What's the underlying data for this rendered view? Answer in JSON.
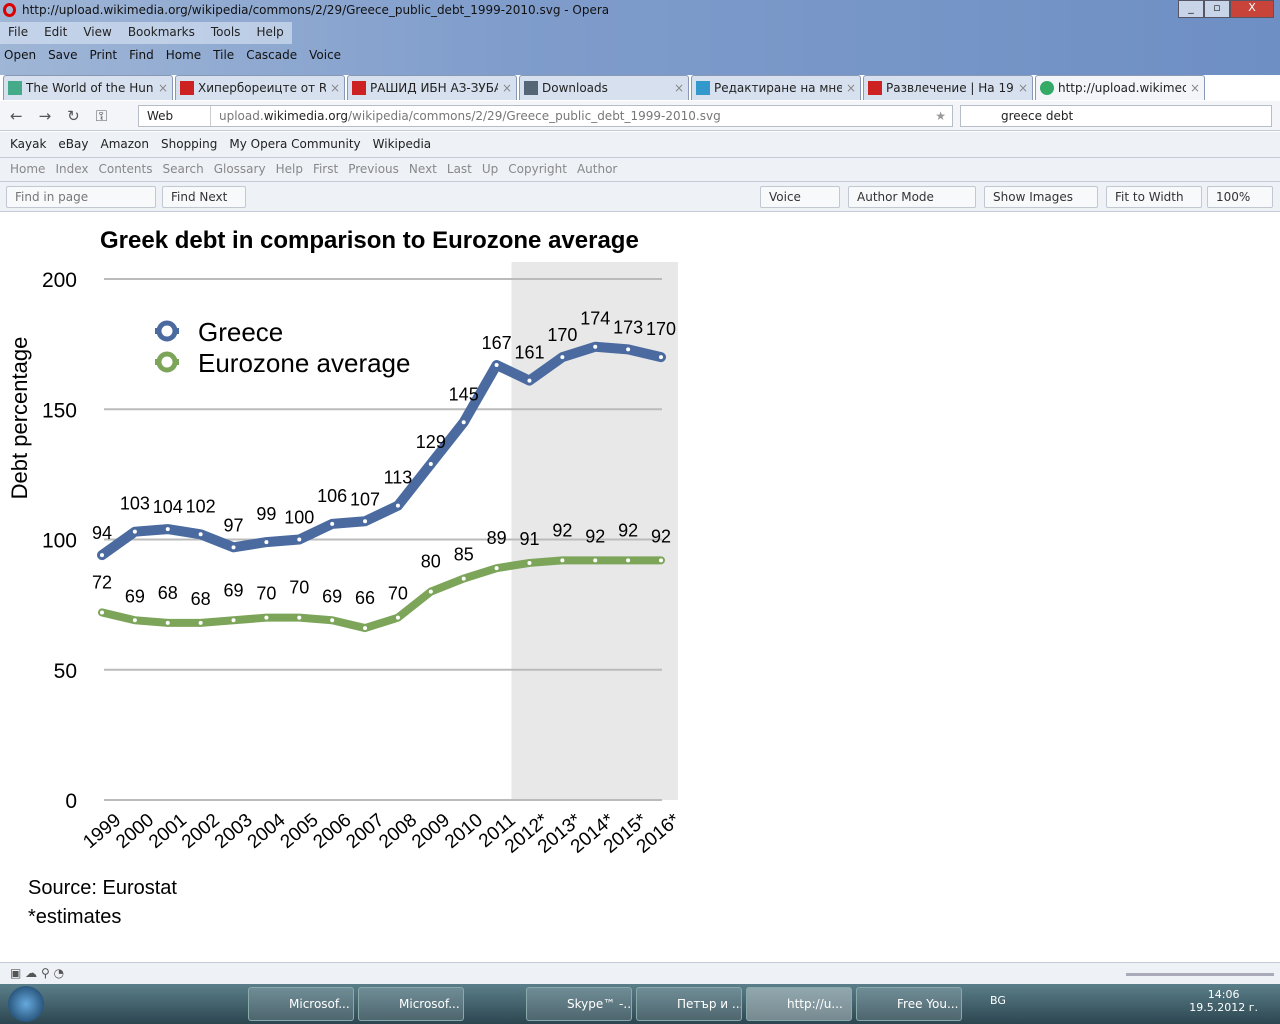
{
  "window": {
    "title": "http://upload.wikimedia.org/wikipedia/commons/2/29/Greece_public_debt_1999-2010.svg - Opera"
  },
  "menu": [
    "File",
    "Edit",
    "View",
    "Bookmarks",
    "Tools",
    "Help"
  ],
  "toolbar": [
    "Open",
    "Save",
    "Print",
    "Find",
    "Home",
    "Tile",
    "Cascade",
    "Voice"
  ],
  "tabs": [
    {
      "label": "The World of the Huns:...",
      "active": false
    },
    {
      "label": "Хипербореицте от R...",
      "active": false
    },
    {
      "label": "РАШИД ИБН АЗ-ЗУБА...",
      "active": false
    },
    {
      "label": "Downloads",
      "active": false
    },
    {
      "label": "Редактиране на мнен...",
      "active": false
    },
    {
      "label": "Развлечение | На 19 м...",
      "active": false
    },
    {
      "label": "http://upload.wikimed...",
      "active": true
    }
  ],
  "address": {
    "web_label": "Web",
    "url_pre": "upload.",
    "url_domain": "wikimedia.org",
    "url_post": "/wikipedia/commons/2/29/Greece_public_debt_1999-2010.svg",
    "search": "greece debt"
  },
  "bookmarks": [
    "Kayak",
    "eBay",
    "Amazon",
    "Shopping",
    "My Opera Community",
    "Wikipedia"
  ],
  "navlinks": [
    "Home",
    "Index",
    "Contents",
    "Search",
    "Glossary",
    "Help",
    "First",
    "Previous",
    "Next",
    "Last",
    "Up",
    "Copyright",
    "Author"
  ],
  "findbar": {
    "placeholder": "Find in page",
    "find_next": "Find Next",
    "voice": "Voice",
    "author_mode": "Author Mode",
    "show_images": "Show Images",
    "fit": "Fit to Width",
    "zoom": "100%"
  },
  "chart_data": {
    "type": "line",
    "title": "Greek debt in comparison to Eurozone average",
    "ylabel": "Debt percentage",
    "xlabel": "",
    "ylim": [
      0,
      200
    ],
    "yticks": [
      0,
      50,
      100,
      150,
      200
    ],
    "categories": [
      "1999",
      "2000",
      "2001",
      "2002",
      "2003",
      "2004",
      "2005",
      "2006",
      "2007",
      "2008",
      "2009",
      "2010",
      "2011",
      "2012*",
      "2013*",
      "2014*",
      "2015*",
      "2016*"
    ],
    "series": [
      {
        "name": "Greece",
        "color": "#4a6aa0",
        "values": [
          94,
          103,
          104,
          102,
          97,
          99,
          100,
          106,
          107,
          113,
          129,
          145,
          167,
          161,
          170,
          174,
          173,
          170
        ]
      },
      {
        "name": "Eurozone average",
        "color": "#7da55a",
        "values": [
          72,
          69,
          68,
          68,
          69,
          70,
          70,
          69,
          66,
          70,
          80,
          85,
          89,
          91,
          92,
          92,
          92,
          92
        ]
      }
    ],
    "shaded_from": "2012*",
    "legend": "top-left",
    "notes": [
      "Source: Eurostat",
      "*estimates"
    ]
  },
  "taskbar": {
    "items": [
      "Microsof...",
      "Microsof...",
      "Skype™ -...",
      "Петър и ...",
      "http://u...",
      "Free You..."
    ],
    "lang": "BG",
    "time": "14:06",
    "date": "19.5.2012 г."
  }
}
